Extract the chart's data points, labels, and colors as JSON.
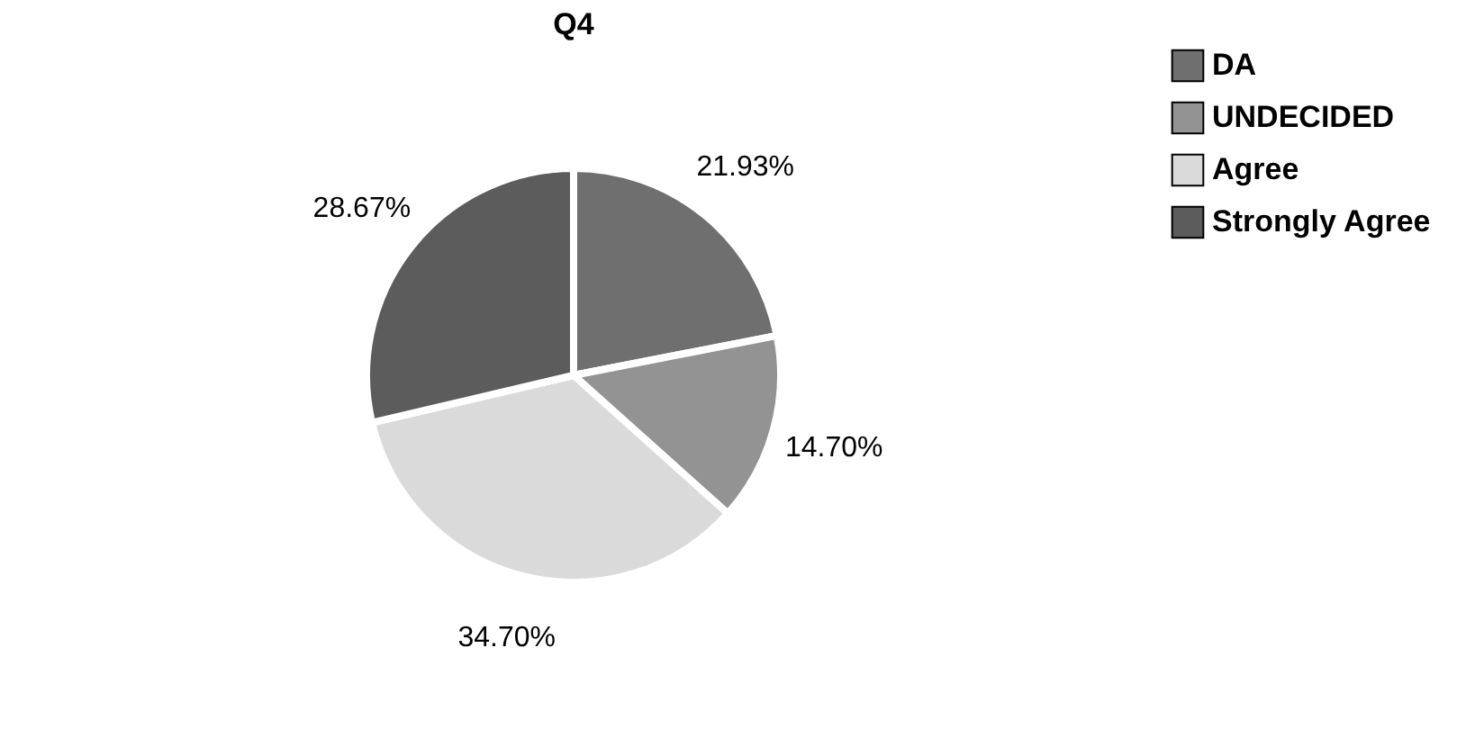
{
  "chart_data": {
    "type": "pie",
    "title": "Q4",
    "categories": [
      "DA",
      "UNDECIDED",
      "Agree",
      "Strongly Agree"
    ],
    "values": [
      21.93,
      14.7,
      34.7,
      28.67
    ],
    "colors": [
      "#6f6f6f",
      "#939393",
      "#dadada",
      "#5c5c5c"
    ],
    "value_labels": [
      "21.93%",
      "14.70%",
      "34.70%",
      "28.67%"
    ],
    "legend": "right"
  }
}
